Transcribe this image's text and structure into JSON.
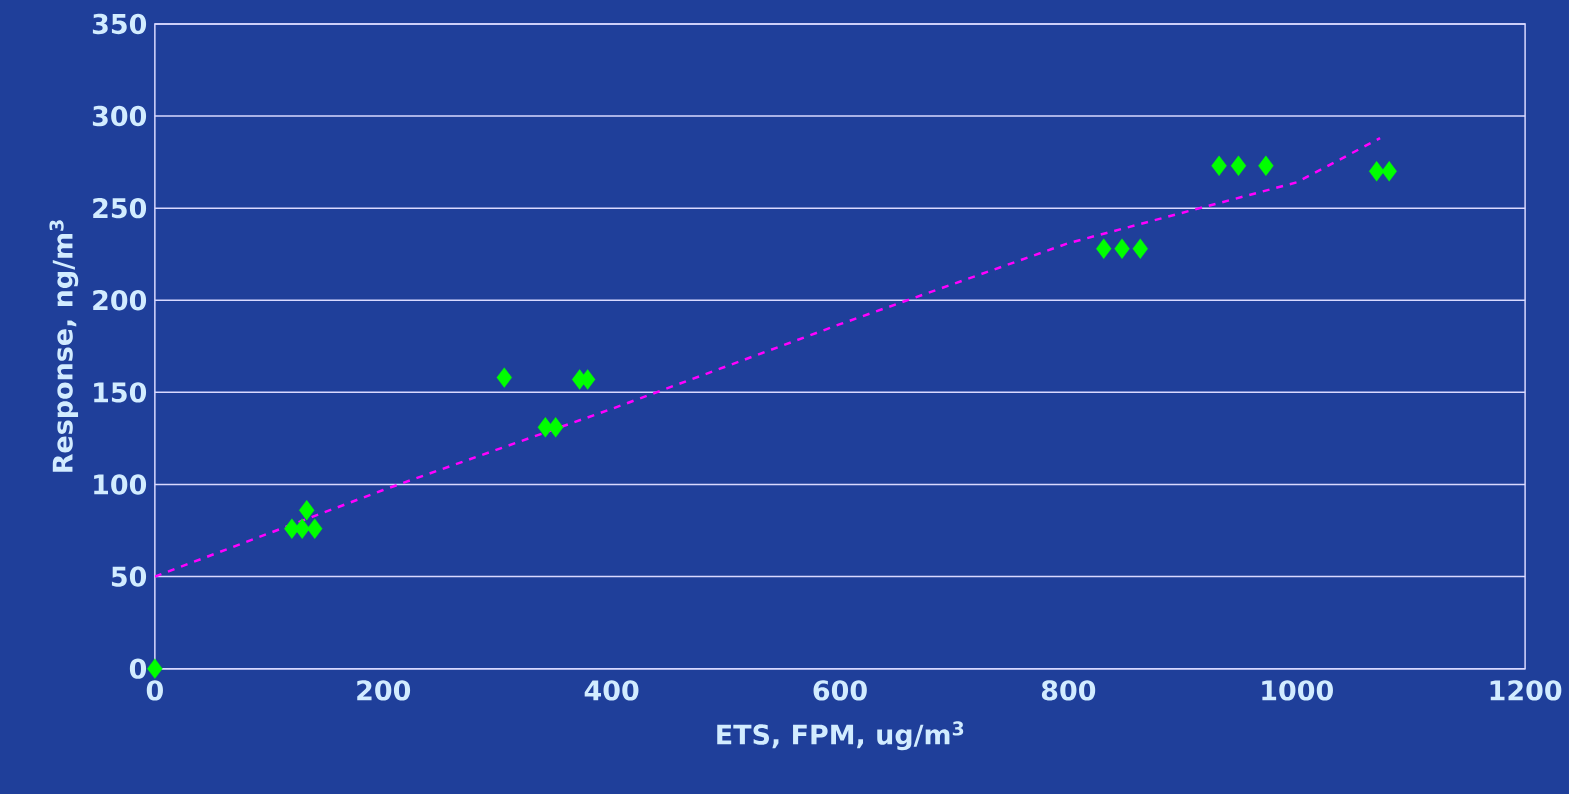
{
  "chart_data": {
    "type": "scatter",
    "xlabel": "ETS, FPM, ug/m$^{3}$",
    "ylabel": "Response, ng/m$^{3}$",
    "xlim": [
      0,
      1200
    ],
    "xticks": [
      0,
      200,
      400,
      600,
      800,
      1000,
      1200
    ],
    "ylim": [
      0,
      350
    ],
    "yticks": [
      0,
      50,
      100,
      150,
      200,
      250,
      300,
      350
    ],
    "grid": "y",
    "marker": "diamond",
    "series": [
      {
        "color": "#00ff00",
        "x": [
          0,
          120,
          129,
          140,
          133,
          306,
          342,
          351,
          372,
          379,
          831,
          847,
          863,
          932,
          949,
          973,
          1070,
          1081
        ],
        "values": [
          0,
          76,
          76,
          76,
          86,
          158,
          131,
          131,
          157,
          157,
          228,
          228,
          228,
          273,
          273,
          273,
          270,
          270
        ]
      },
      {
        "type": "line",
        "color": "#ff00ff",
        "line_style": "dashed",
        "marker": "none",
        "x": [
          0,
          200,
          400,
          600,
          800,
          1000,
          1073
        ],
        "values": [
          50,
          97,
          141,
          187,
          231,
          264,
          288
        ]
      }
    ]
  }
}
